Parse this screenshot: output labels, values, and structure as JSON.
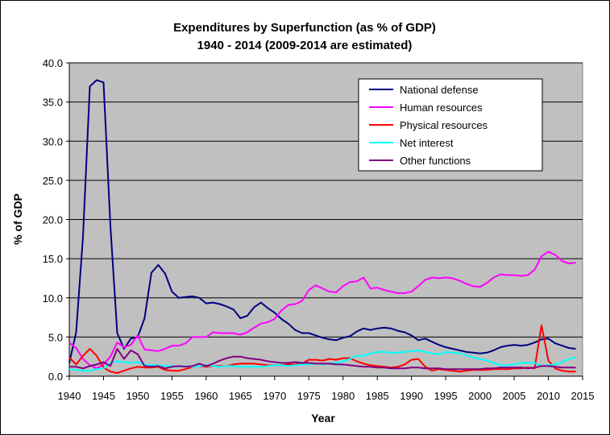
{
  "chart_data": {
    "type": "line",
    "title": "Expenditures by Superfunction (as % of GDP)",
    "subtitle": "1940 - 2014 (2009-2014 are estimated)",
    "xlabel": "Year",
    "ylabel": "% of GDP",
    "xlim": [
      1940,
      2015
    ],
    "ylim": [
      0,
      40
    ],
    "xticks": [
      "1940",
      "1945",
      "1950",
      "1955",
      "1960",
      "1965",
      "1970",
      "1975",
      "1980",
      "1985",
      "1990",
      "1995",
      "2000",
      "2005",
      "2010",
      "2015"
    ],
    "yticks": [
      "0.0",
      "5.0",
      "10.0",
      "15.0",
      "20.0",
      "25.0",
      "30.0",
      "35.0",
      "40.0"
    ],
    "grid": "horizontal",
    "legend": "top-right",
    "colors": {
      "plot_background": "#c0c0c0"
    },
    "x": [
      1940,
      1941,
      1942,
      1943,
      1944,
      1945,
      1946,
      1947,
      1948,
      1949,
      1950,
      1951,
      1952,
      1953,
      1954,
      1955,
      1956,
      1957,
      1958,
      1959,
      1960,
      1961,
      1962,
      1963,
      1964,
      1965,
      1966,
      1967,
      1968,
      1969,
      1970,
      1971,
      1972,
      1973,
      1974,
      1975,
      1976,
      1977,
      1978,
      1979,
      1980,
      1981,
      1982,
      1983,
      1984,
      1985,
      1986,
      1987,
      1988,
      1989,
      1990,
      1991,
      1992,
      1993,
      1994,
      1995,
      1996,
      1997,
      1998,
      1999,
      2000,
      2001,
      2002,
      2003,
      2004,
      2005,
      2006,
      2007,
      2008,
      2009,
      2010,
      2011,
      2012,
      2013,
      2014
    ],
    "series": [
      {
        "name": "National defense",
        "color": "#000080",
        "values": [
          1.7,
          5.6,
          17.8,
          37.0,
          37.8,
          37.5,
          19.2,
          5.5,
          3.5,
          4.8,
          5.0,
          7.4,
          13.2,
          14.2,
          13.1,
          10.8,
          10.0,
          10.1,
          10.2,
          10.0,
          9.3,
          9.4,
          9.2,
          8.9,
          8.5,
          7.4,
          7.7,
          8.8,
          9.4,
          8.7,
          8.1,
          7.3,
          6.7,
          5.9,
          5.5,
          5.5,
          5.2,
          4.9,
          4.7,
          4.6,
          4.9,
          5.1,
          5.7,
          6.1,
          5.9,
          6.1,
          6.2,
          6.1,
          5.8,
          5.6,
          5.2,
          4.6,
          4.8,
          4.4,
          4.0,
          3.7,
          3.5,
          3.3,
          3.1,
          3.0,
          2.9,
          3.0,
          3.3,
          3.7,
          3.9,
          4.0,
          3.9,
          4.0,
          4.3,
          4.7,
          4.8,
          4.2,
          3.9,
          3.6,
          3.5
        ]
      },
      {
        "name": "Human resources",
        "color": "#ff00ff",
        "values": [
          4.3,
          3.6,
          2.2,
          1.4,
          1.0,
          1.5,
          2.5,
          4.3,
          3.7,
          4.0,
          5.2,
          3.4,
          3.3,
          3.2,
          3.5,
          3.9,
          3.9,
          4.2,
          5.0,
          5.0,
          5.0,
          5.6,
          5.5,
          5.5,
          5.5,
          5.3,
          5.6,
          6.2,
          6.7,
          6.9,
          7.3,
          8.4,
          9.1,
          9.2,
          9.6,
          11.0,
          11.6,
          11.2,
          10.8,
          10.7,
          11.5,
          12.0,
          12.1,
          12.6,
          11.2,
          11.3,
          11.0,
          10.8,
          10.6,
          10.6,
          10.8,
          11.5,
          12.3,
          12.6,
          12.5,
          12.6,
          12.5,
          12.2,
          11.8,
          11.5,
          11.4,
          11.9,
          12.6,
          13.0,
          12.9,
          12.9,
          12.8,
          12.9,
          13.6,
          15.3,
          15.9,
          15.5,
          14.7,
          14.4,
          14.5
        ]
      },
      {
        "name": "Physical resources",
        "color": "#ff0000",
        "values": [
          2.4,
          1.5,
          2.6,
          3.5,
          2.6,
          1.1,
          0.6,
          0.4,
          0.7,
          1.0,
          1.2,
          1.1,
          1.1,
          1.2,
          0.8,
          0.7,
          0.7,
          0.9,
          1.2,
          1.3,
          1.2,
          1.3,
          1.3,
          1.3,
          1.5,
          1.6,
          1.6,
          1.6,
          1.5,
          1.4,
          1.4,
          1.4,
          1.5,
          1.5,
          1.6,
          2.1,
          2.1,
          2.0,
          2.2,
          2.1,
          2.3,
          2.3,
          1.9,
          1.6,
          1.4,
          1.3,
          1.2,
          1.1,
          1.2,
          1.5,
          2.1,
          2.2,
          1.2,
          0.7,
          0.9,
          0.8,
          0.7,
          0.6,
          0.7,
          0.8,
          0.8,
          0.8,
          0.9,
          0.9,
          0.9,
          1.0,
          1.0,
          1.1,
          1.0,
          6.5,
          2.0,
          1.0,
          0.7,
          0.6,
          0.6
        ]
      },
      {
        "name": "Net interest",
        "color": "#00ffff",
        "values": [
          0.9,
          0.8,
          0.7,
          0.7,
          0.9,
          1.0,
          1.7,
          1.9,
          1.8,
          1.7,
          1.8,
          1.5,
          1.4,
          1.4,
          1.3,
          1.3,
          1.2,
          1.3,
          1.2,
          1.3,
          1.4,
          1.3,
          1.2,
          1.3,
          1.3,
          1.2,
          1.2,
          1.2,
          1.2,
          1.3,
          1.4,
          1.4,
          1.3,
          1.4,
          1.5,
          1.5,
          1.6,
          1.5,
          1.6,
          1.7,
          1.9,
          2.2,
          2.6,
          2.6,
          2.9,
          3.1,
          3.1,
          3.0,
          3.0,
          3.1,
          3.2,
          3.3,
          3.1,
          2.9,
          2.8,
          3.1,
          3.0,
          2.9,
          2.7,
          2.4,
          2.2,
          2.0,
          1.7,
          1.4,
          1.4,
          1.5,
          1.7,
          1.7,
          1.7,
          1.3,
          1.4,
          1.5,
          1.8,
          2.2,
          2.4
        ]
      },
      {
        "name": "Other functions",
        "color": "#800080",
        "values": [
          1.2,
          1.2,
          1.0,
          1.3,
          1.5,
          1.8,
          1.3,
          3.5,
          2.2,
          3.3,
          2.8,
          1.3,
          1.2,
          1.3,
          1.0,
          1.2,
          1.3,
          1.2,
          1.3,
          1.6,
          1.3,
          1.6,
          2.0,
          2.3,
          2.5,
          2.5,
          2.3,
          2.2,
          2.1,
          1.9,
          1.8,
          1.7,
          1.7,
          1.8,
          1.7,
          1.7,
          1.6,
          1.6,
          1.6,
          1.5,
          1.5,
          1.4,
          1.3,
          1.2,
          1.2,
          1.1,
          1.1,
          1.0,
          1.0,
          1.0,
          1.1,
          1.1,
          1.0,
          1.0,
          1.0,
          0.9,
          0.9,
          0.9,
          0.9,
          0.9,
          0.9,
          1.0,
          1.0,
          1.1,
          1.1,
          1.1,
          1.1,
          1.0,
          1.1,
          1.3,
          1.3,
          1.2,
          1.1,
          1.1,
          1.1
        ]
      }
    ]
  }
}
